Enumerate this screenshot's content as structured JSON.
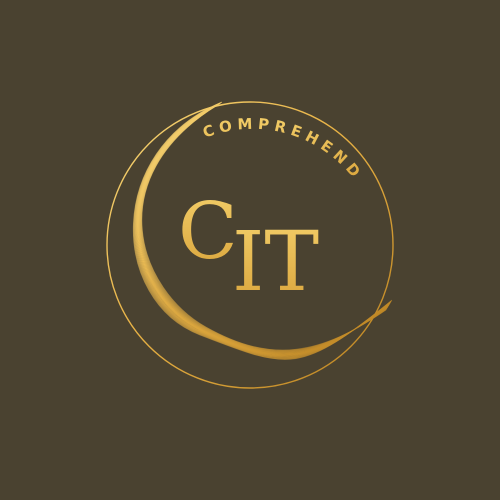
{
  "logo": {
    "curved_word": "COMPREHEND",
    "monogram_left": "C",
    "monogram_right": "IT",
    "colors": {
      "background": "#4a4230",
      "gold_light": "#f3cf6a",
      "gold_mid": "#e2ab3c",
      "gold_dark": "#b27a1c"
    }
  }
}
